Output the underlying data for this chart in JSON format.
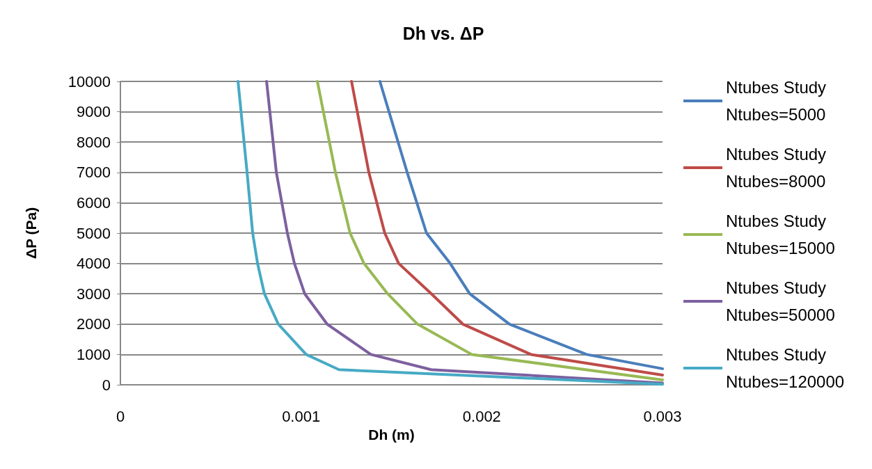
{
  "chart_data": {
    "type": "line",
    "title": "Dh vs. ΔP",
    "xlabel": "Dh (m)",
    "ylabel": "ΔP (Pa)",
    "xlim": [
      0,
      0.003
    ],
    "xticks": [
      0,
      0.001,
      0.002,
      0.003
    ],
    "ylim": [
      0,
      10000
    ],
    "yticks": [
      0,
      1000,
      2000,
      3000,
      4000,
      5000,
      6000,
      7000,
      8000,
      9000,
      10000
    ],
    "grid": "y",
    "legend": "right",
    "marker": "none",
    "line_style": "solid",
    "series": [
      {
        "name": "Ntubes Study Ntubes=5000",
        "color": "#4a7ebb",
        "x": [
          0.001436,
          0.001587,
          0.001694,
          0.001825,
          0.001933,
          0.002153,
          0.00258,
          0.003
        ],
        "values": [
          10000,
          7000,
          5000,
          4000,
          3000,
          2000,
          1000,
          530
        ]
      },
      {
        "name": "Ntubes Study Ntubes=8000",
        "color": "#be4b48",
        "x": [
          0.001279,
          0.001375,
          0.001463,
          0.00154,
          0.001721,
          0.001895,
          0.002272,
          0.003
        ],
        "values": [
          10000,
          7000,
          5000,
          4000,
          3000,
          2000,
          1000,
          320
        ]
      },
      {
        "name": "Ntubes Study Ntubes=15000",
        "color": "#98b954",
        "x": [
          0.00109,
          0.00119,
          0.001271,
          0.001348,
          0.001479,
          0.001644,
          0.001945,
          0.003
        ],
        "values": [
          10000,
          7000,
          5000,
          4000,
          3000,
          2000,
          1000,
          160
        ]
      },
      {
        "name": "Ntubes Study Ntubes=50000",
        "color": "#7d60a0",
        "x": [
          0.000809,
          0.000863,
          0.000924,
          0.000963,
          0.00102,
          0.001144,
          0.001386,
          0.00172,
          0.003
        ],
        "values": [
          10000,
          7000,
          5000,
          4000,
          3000,
          2000,
          1000,
          500,
          60
        ]
      },
      {
        "name": "Ntubes Study Ntubes=120000",
        "color": "#46aac5",
        "x": [
          0.000651,
          0.000701,
          0.000732,
          0.000759,
          0.000797,
          0.000874,
          0.001028,
          0.00121,
          0.003
        ],
        "values": [
          10000,
          7000,
          5000,
          4000,
          3000,
          2000,
          1000,
          500,
          20
        ]
      }
    ]
  }
}
